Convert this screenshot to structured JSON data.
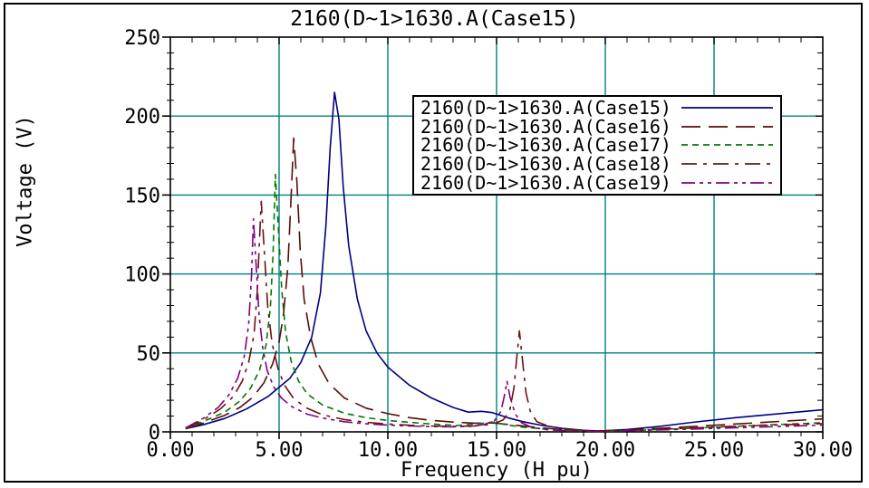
{
  "window": {
    "background": "#ffffff",
    "frame_color": "#000000"
  },
  "chart_data": {
    "type": "line",
    "title": "2160(D~1>1630.A(Case15)",
    "xlabel": "Frequency (H pu)",
    "ylabel": "Voltage (V)",
    "xlim": [
      0,
      30
    ],
    "ylim": [
      0,
      250
    ],
    "x_tick_values": [
      0,
      5,
      10,
      15,
      20,
      25,
      30
    ],
    "x_tick_labels": [
      "0.00",
      "5.00",
      "10.00",
      "15.00",
      "20.00",
      "25.00",
      "30.00"
    ],
    "x_minor_step": 1,
    "y_tick_values": [
      0,
      50,
      100,
      150,
      200,
      250
    ],
    "y_tick_labels": [
      "0",
      "50",
      "100",
      "150",
      "200",
      "250"
    ],
    "y_minor_step": 10,
    "grid": {
      "show": true,
      "color": "#007F7F"
    },
    "axis_color": "#000000",
    "legend_position": "upper-right-inside",
    "series": [
      {
        "name": "2160(D~1>1630.A(Case15)",
        "color": "#000080",
        "dash": "",
        "points": [
          [
            0.7,
            2
          ],
          [
            1.5,
            4.5
          ],
          [
            2.5,
            8.5
          ],
          [
            3.5,
            14.5
          ],
          [
            4.5,
            22.5
          ],
          [
            5.5,
            34
          ],
          [
            6,
            44
          ],
          [
            6.5,
            60
          ],
          [
            6.9,
            88
          ],
          [
            7.15,
            130
          ],
          [
            7.35,
            180
          ],
          [
            7.55,
            215
          ],
          [
            7.75,
            198
          ],
          [
            7.95,
            155
          ],
          [
            8.2,
            118
          ],
          [
            8.6,
            84
          ],
          [
            9,
            64
          ],
          [
            9.5,
            50
          ],
          [
            10,
            41
          ],
          [
            11,
            29.5
          ],
          [
            12,
            21.5
          ],
          [
            13,
            15.5
          ],
          [
            13.7,
            12.5
          ],
          [
            14.3,
            13
          ],
          [
            14.8,
            12.2
          ],
          [
            15.5,
            9
          ],
          [
            16.2,
            6.5
          ],
          [
            17,
            4.3
          ],
          [
            18,
            2.3
          ],
          [
            19,
            1
          ],
          [
            19.7,
            0.5
          ],
          [
            21,
            1.5
          ],
          [
            22.5,
            3.5
          ],
          [
            24,
            6
          ],
          [
            26,
            9
          ],
          [
            28,
            11.5
          ],
          [
            30,
            14
          ]
        ]
      },
      {
        "name": "2160(D~1>1630.A(Case16)",
        "color": "#5A0A0A",
        "dash": "21,9",
        "points": [
          [
            0.7,
            2
          ],
          [
            1.5,
            5.5
          ],
          [
            2.5,
            10.5
          ],
          [
            3.2,
            15.5
          ],
          [
            3.8,
            22
          ],
          [
            4.3,
            31
          ],
          [
            4.7,
            43
          ],
          [
            5,
            57
          ],
          [
            5.2,
            74
          ],
          [
            5.4,
            104
          ],
          [
            5.55,
            148
          ],
          [
            5.67,
            186
          ],
          [
            5.82,
            158
          ],
          [
            5.97,
            115
          ],
          [
            6.15,
            84
          ],
          [
            6.45,
            60
          ],
          [
            6.8,
            43
          ],
          [
            7.3,
            30.5
          ],
          [
            8,
            21.5
          ],
          [
            9,
            15
          ],
          [
            10,
            11.5
          ],
          [
            11,
            9
          ],
          [
            12,
            7.3
          ],
          [
            13,
            6.2
          ],
          [
            14,
            5.5
          ],
          [
            14.8,
            5.7
          ],
          [
            15.6,
            4.6
          ],
          [
            16.5,
            3.3
          ],
          [
            17.5,
            2
          ],
          [
            18.5,
            1
          ],
          [
            19.7,
            0.5
          ],
          [
            21,
            1.2
          ],
          [
            23,
            2.6
          ],
          [
            25,
            4.2
          ],
          [
            27,
            5.8
          ],
          [
            30,
            8.2
          ]
        ]
      },
      {
        "name": "2160(D~1>1630.A(Case17)",
        "color": "#007800",
        "dash": "7,5",
        "points": [
          [
            0.7,
            2
          ],
          [
            1.5,
            6.5
          ],
          [
            2.5,
            12.5
          ],
          [
            3.2,
            19.5
          ],
          [
            3.7,
            28
          ],
          [
            4.1,
            39
          ],
          [
            4.4,
            55
          ],
          [
            4.6,
            79
          ],
          [
            4.72,
            112
          ],
          [
            4.83,
            163
          ],
          [
            4.97,
            128
          ],
          [
            5.12,
            90
          ],
          [
            5.3,
            63
          ],
          [
            5.55,
            45
          ],
          [
            5.9,
            32
          ],
          [
            6.3,
            24
          ],
          [
            7,
            17
          ],
          [
            8,
            11.8
          ],
          [
            9,
            9
          ],
          [
            10,
            7.2
          ],
          [
            11,
            6
          ],
          [
            12,
            5
          ],
          [
            13.2,
            4
          ],
          [
            14.2,
            5.2
          ],
          [
            14.8,
            6.2
          ],
          [
            15.4,
            4.6
          ],
          [
            16.2,
            3
          ],
          [
            17.2,
            1.8
          ],
          [
            18.3,
            0.9
          ],
          [
            19.7,
            0.3
          ],
          [
            21.5,
            1
          ],
          [
            23.5,
            2
          ],
          [
            25.5,
            3.2
          ],
          [
            27.5,
            4.4
          ],
          [
            30,
            5.8
          ]
        ]
      },
      {
        "name": "2160(D~1>1630.A(Case18)",
        "color": "#701010",
        "dash": "17,7,4,7",
        "points": [
          [
            0.7,
            2.2
          ],
          [
            1.5,
            7.5
          ],
          [
            2.3,
            14.5
          ],
          [
            2.9,
            22.5
          ],
          [
            3.3,
            32
          ],
          [
            3.6,
            44
          ],
          [
            3.85,
            62
          ],
          [
            4,
            90
          ],
          [
            4.1,
            122
          ],
          [
            4.18,
            146
          ],
          [
            4.32,
            114
          ],
          [
            4.48,
            79
          ],
          [
            4.68,
            56
          ],
          [
            4.95,
            40
          ],
          [
            5.25,
            29.5
          ],
          [
            5.65,
            21.5
          ],
          [
            6.2,
            15.5
          ],
          [
            7,
            10.8
          ],
          [
            8,
            7.8
          ],
          [
            9,
            6
          ],
          [
            10,
            5
          ],
          [
            11,
            4.2
          ],
          [
            12,
            3.7
          ],
          [
            13,
            3.5
          ],
          [
            14,
            3.8
          ],
          [
            14.8,
            4.8
          ],
          [
            15.3,
            7.5
          ],
          [
            15.6,
            13
          ],
          [
            15.8,
            28
          ],
          [
            15.95,
            50
          ],
          [
            16.05,
            64
          ],
          [
            16.18,
            47
          ],
          [
            16.35,
            25
          ],
          [
            16.55,
            13
          ],
          [
            16.85,
            6.5
          ],
          [
            17.4,
            3.5
          ],
          [
            18.2,
            1.7
          ],
          [
            19.2,
            0.7
          ],
          [
            20,
            0.5
          ],
          [
            21.5,
            1.1
          ],
          [
            23.5,
            2.2
          ],
          [
            25.5,
            3.3
          ],
          [
            27.5,
            4.2
          ],
          [
            30,
            5.2
          ]
        ]
      },
      {
        "name": "2160(D~1>1630.A(Case19)",
        "color": "#800080",
        "dash": "15,5,4,5,4,5",
        "points": [
          [
            0.7,
            2.5
          ],
          [
            1.5,
            8.5
          ],
          [
            2.2,
            15.5
          ],
          [
            2.7,
            23.5
          ],
          [
            3.1,
            34
          ],
          [
            3.4,
            48
          ],
          [
            3.6,
            68
          ],
          [
            3.73,
            98
          ],
          [
            3.82,
            135
          ],
          [
            3.94,
            106
          ],
          [
            4.08,
            74
          ],
          [
            4.25,
            53
          ],
          [
            4.45,
            39
          ],
          [
            4.75,
            28.5
          ],
          [
            5.1,
            21.5
          ],
          [
            5.6,
            15.8
          ],
          [
            6.3,
            11.2
          ],
          [
            7,
            8.8
          ],
          [
            8,
            6.4
          ],
          [
            9,
            5.1
          ],
          [
            10,
            4.3
          ],
          [
            11,
            3.7
          ],
          [
            12,
            3.3
          ],
          [
            13,
            3.2
          ],
          [
            13.8,
            3.5
          ],
          [
            14.4,
            4.6
          ],
          [
            14.9,
            7
          ],
          [
            15.2,
            13
          ],
          [
            15.38,
            24
          ],
          [
            15.48,
            32
          ],
          [
            15.62,
            22
          ],
          [
            15.85,
            11.5
          ],
          [
            16.15,
            5.8
          ],
          [
            16.6,
            2.9
          ],
          [
            17.3,
            1.4
          ],
          [
            18.3,
            0.6
          ],
          [
            19.6,
            0.3
          ],
          [
            21,
            0.7
          ],
          [
            23,
            1.4
          ],
          [
            25,
            2.2
          ],
          [
            27,
            3
          ],
          [
            30,
            4.3
          ]
        ]
      }
    ]
  }
}
